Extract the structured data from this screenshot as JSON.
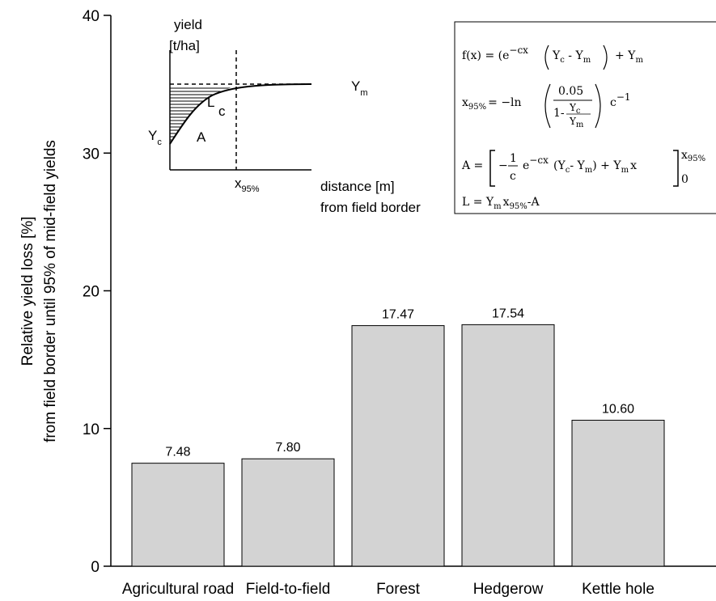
{
  "chart_data": {
    "type": "bar",
    "categories": [
      "Agricultural road",
      "Field-to-field",
      "Forest",
      "Hedgerow",
      "Kettle hole"
    ],
    "values": [
      7.48,
      7.8,
      17.47,
      17.54,
      10.6
    ],
    "value_labels": [
      "7.48",
      "7.80",
      "17.47",
      "17.54",
      "10.60"
    ],
    "ylabel_line1": "Relative yield loss [%]",
    "ylabel_line2": "from field border until 95% of mid-field yields",
    "xlabel": "",
    "ylim": [
      0,
      40
    ],
    "yticks": [
      0,
      10,
      20,
      30,
      40
    ],
    "grid": false,
    "bar_color": "#d3d3d3",
    "bar_edge_color": "#000000"
  },
  "inset": {
    "y_axis_label_line1": "yield",
    "y_axis_label_line2": "[t/ha]",
    "x_axis_label_line1": "distance  [m]",
    "x_axis_label_line2": "from field border",
    "label_ym": "Y",
    "label_ym_sub": "m",
    "label_yc": "Y",
    "label_yc_sub": "c",
    "label_L": "L",
    "label_c": "c",
    "label_A": "A",
    "label_x95": "x",
    "label_x95_sub": "95%"
  },
  "formulas": {
    "f_lhs": "f(x) = (e",
    "f_exp": "−cx",
    "f_inner_left": "Y",
    "f_inner_left_sub": "c",
    "f_inner_mid": " - Y",
    "f_inner_mid_sub": "m",
    "f_tail": "+ Y",
    "f_tail_sub": "m",
    "x_lhs": "x",
    "x_lhs_sub": "95%",
    "x_eq": "= −ln",
    "x_num": "0.05",
    "x_den_prefix": "1-",
    "x_frac_top": "Y",
    "x_frac_top_sub": "c",
    "x_frac_bot": "Y",
    "x_frac_bot_sub": "m",
    "x_tail": "c",
    "x_tail_exp": "−1",
    "a_lhs": "A =",
    "a_minus": "−",
    "a_one": "1",
    "a_c": "c",
    "a_e": "e",
    "a_exp": "−cx",
    "a_body": "(Y",
    "a_body_sub1": "c",
    "a_body_mid": "- Y",
    "a_body_sub2": "m",
    "a_body_tail": ") + Y",
    "a_body_sub3": "m",
    "a_x": "x",
    "a_upper": "x",
    "a_upper_sub": "95%",
    "a_lower": "0",
    "l_text": "L = Y",
    "l_sub1": "m",
    "l_mid": "x",
    "l_sub2": "95%",
    "l_tail": "-A"
  }
}
